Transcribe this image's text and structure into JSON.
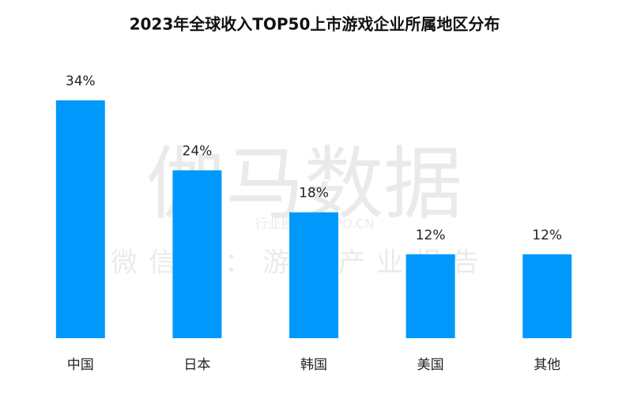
{
  "chart_data": {
    "type": "bar",
    "title": "2023年全球收入TOP50上市游戏企业所属地区分布",
    "categories": [
      "中国",
      "日本",
      "韩国",
      "美国",
      "其他"
    ],
    "values": [
      34,
      24,
      18,
      12,
      12
    ],
    "value_labels": [
      "34%",
      "24%",
      "18%",
      "12%",
      "12%"
    ],
    "color": "#0099fb"
  },
  "watermarks": [
    "伽马数据",
    "微信号：游戏产业报告",
    "行业报告 IPOIPO.CN"
  ]
}
